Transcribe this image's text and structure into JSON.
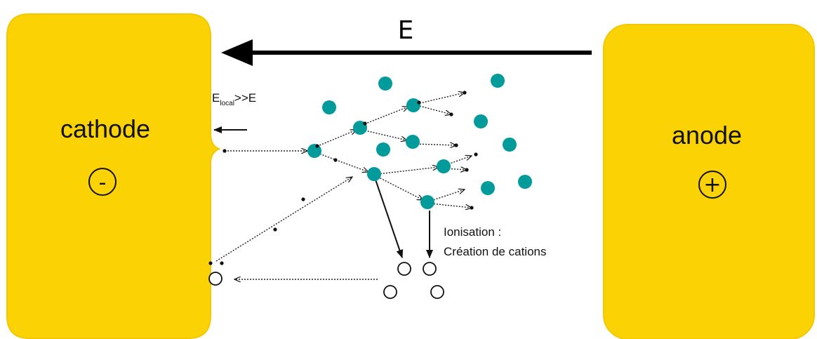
{
  "field_label": "E",
  "cathode": {
    "label": "cathode",
    "sign": "-"
  },
  "anode": {
    "label": "anode",
    "sign": "+"
  },
  "local_field": {
    "main": "E",
    "subscript": "local",
    "suffix": ">>E"
  },
  "ionisation_note": {
    "line1": "Ionisation :",
    "line2": "Création de cations"
  },
  "colors": {
    "electrode": "#fbd204",
    "electrode_edge": "#f3c800",
    "molecule": "#009b9a",
    "cation_fill": "#ffffff",
    "ink": "#111111"
  }
}
